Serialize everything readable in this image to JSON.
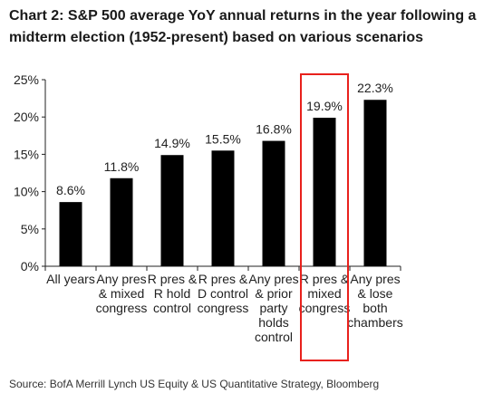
{
  "title": {
    "line1": "Chart 2: S&P 500 average YoY annual returns in the year following a",
    "line2": "midterm election (1952-present) based on various scenarios"
  },
  "source": "Source: BofA Merrill Lynch US Equity & US Quantitative Strategy, Bloomberg",
  "chart_data": {
    "type": "bar",
    "categories": [
      [
        "All years"
      ],
      [
        "Any pres",
        "& mixed",
        "congress"
      ],
      [
        "R pres &",
        "R hold",
        "control"
      ],
      [
        "R pres &",
        "D control",
        "congress"
      ],
      [
        "Any pres",
        "& prior",
        "party",
        "holds",
        "control"
      ],
      [
        "R pres &",
        "mixed",
        "congress"
      ],
      [
        "Any pres",
        "& lose",
        "both",
        "chambers"
      ]
    ],
    "values": [
      8.6,
      11.8,
      14.9,
      15.5,
      16.8,
      19.9,
      22.3
    ],
    "data_labels": [
      "8.6%",
      "11.8%",
      "14.9%",
      "15.5%",
      "16.8%",
      "19.9%",
      "22.3%"
    ],
    "ylim": [
      0,
      25
    ],
    "yticks": [
      0,
      5,
      10,
      15,
      20,
      25
    ],
    "ytick_labels": [
      "0%",
      "5%",
      "10%",
      "15%",
      "20%",
      "25%"
    ],
    "grid": false,
    "highlighted_index": 5,
    "colors": {
      "bar": "#000000",
      "highlight_box": "#e8211c",
      "axis": "#222222"
    }
  }
}
